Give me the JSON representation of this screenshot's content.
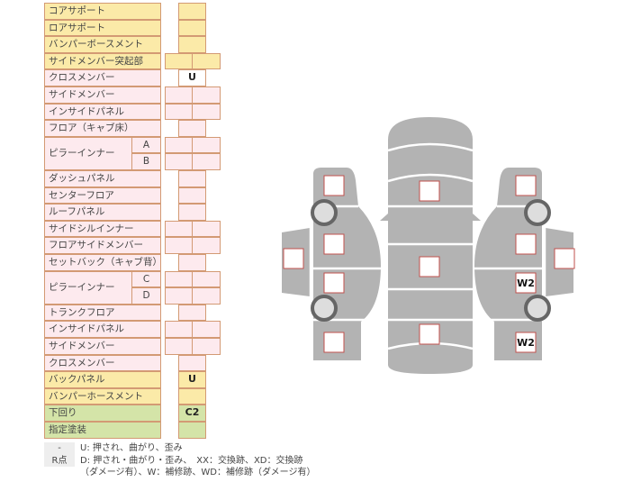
{
  "rows": [
    {
      "label": "コアサポート",
      "color": "yellow",
      "cells": "single",
      "values": [
        ""
      ]
    },
    {
      "label": "ロアサポート",
      "color": "yellow",
      "cells": "single",
      "values": [
        ""
      ]
    },
    {
      "label": "バンパーボースメント",
      "color": "yellow",
      "cells": "single",
      "values": [
        ""
      ]
    },
    {
      "label": "サイドメンバー突起部",
      "color": "yellow",
      "cells": "double",
      "values": [
        "",
        ""
      ]
    },
    {
      "label": "クロスメンバー",
      "color": "pink",
      "cells": "single",
      "values": [
        "U"
      ],
      "cell_color": "white"
    },
    {
      "label": "サイドメンバー",
      "color": "pink",
      "cells": "double",
      "values": [
        "",
        ""
      ]
    },
    {
      "label": "インサイドパネル",
      "color": "pink",
      "cells": "double",
      "values": [
        "",
        ""
      ]
    },
    {
      "label": "フロア（キャブ床）",
      "color": "pink",
      "cells": "single",
      "values": [
        ""
      ]
    },
    {
      "label": "ピラーインナー",
      "sub": "A",
      "color": "pink",
      "cells": "double",
      "values": [
        "",
        ""
      ]
    },
    {
      "label": "",
      "sub": "B",
      "color": "pink",
      "cells": "double",
      "values": [
        "",
        ""
      ]
    },
    {
      "label": "ダッシュパネル",
      "color": "pink",
      "cells": "single",
      "values": [
        ""
      ]
    },
    {
      "label": "センターフロア",
      "color": "pink",
      "cells": "single",
      "values": [
        ""
      ]
    },
    {
      "label": "ルーフパネル",
      "color": "pink",
      "cells": "single",
      "values": [
        ""
      ]
    },
    {
      "label": "サイドシルインナー",
      "color": "pink",
      "cells": "double",
      "values": [
        "",
        ""
      ]
    },
    {
      "label": "フロアサイドメンバー",
      "color": "pink",
      "cells": "double",
      "values": [
        "",
        ""
      ]
    },
    {
      "label": "セットバック（キャブ背）",
      "color": "pink",
      "cells": "single",
      "values": [
        ""
      ]
    },
    {
      "label": "ピラーインナー",
      "sub": "C",
      "color": "pink",
      "cells": "double",
      "values": [
        "",
        ""
      ]
    },
    {
      "label": "",
      "sub": "D",
      "color": "pink",
      "cells": "double",
      "values": [
        "",
        ""
      ]
    },
    {
      "label": "トランクフロア",
      "color": "pink",
      "cells": "single",
      "values": [
        ""
      ]
    },
    {
      "label": "インサイドパネル",
      "color": "pink",
      "cells": "double",
      "values": [
        "",
        ""
      ]
    },
    {
      "label": "サイドメンバー",
      "color": "pink",
      "cells": "double",
      "values": [
        "",
        ""
      ]
    },
    {
      "label": "クロスメンバー",
      "color": "pink",
      "cells": "single",
      "values": [
        ""
      ]
    },
    {
      "label": "バックパネル",
      "color": "yellow",
      "cells": "single",
      "values": [
        "U"
      ]
    },
    {
      "label": "バンパーホースメント",
      "color": "yellow",
      "cells": "single",
      "values": [
        ""
      ]
    },
    {
      "label": "下回り",
      "color": "green",
      "cells": "single",
      "values": [
        "C2"
      ]
    },
    {
      "label": "指定塗装",
      "color": "green",
      "cells": "single",
      "values": [
        ""
      ]
    }
  ],
  "legend": [
    {
      "key": "-",
      "text": "U: 押され、曲がり、歪み"
    },
    {
      "key": "R点",
      "text": "D: 押され・曲がり・歪み、　XX：交換跡、XD：交換跡"
    },
    {
      "key": "",
      "text": "（ダメージ有）、W：補修跡、WD：補修跡（ダメージ有）"
    }
  ],
  "diagram": {
    "left_marks": [
      "",
      "",
      "",
      "",
      ""
    ],
    "center_marks": [
      "",
      "",
      ""
    ],
    "right_marks": [
      "",
      "",
      "W2",
      "W2",
      ""
    ]
  }
}
